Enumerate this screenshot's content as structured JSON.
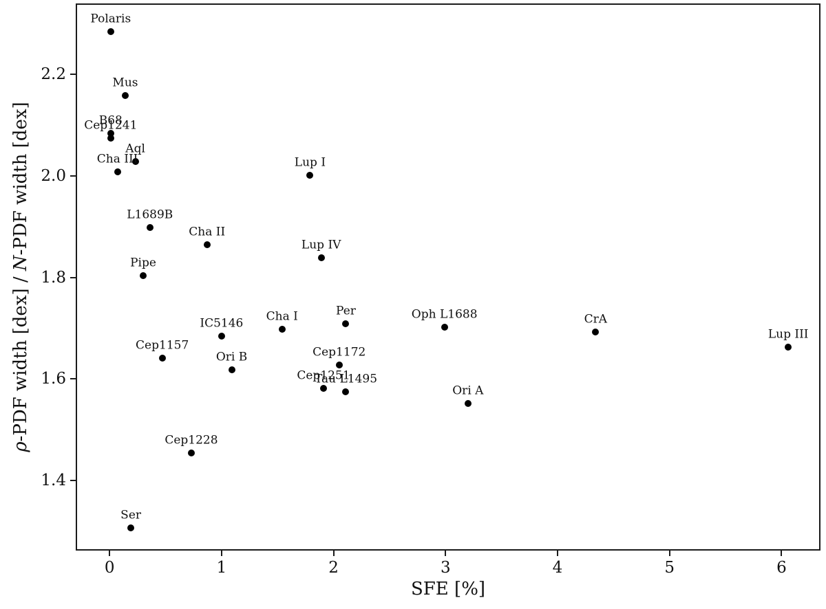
{
  "figure": {
    "background": "#ffffff",
    "marker_color": "#000000",
    "text_color": "#111111",
    "spine_color": "#1a1a1a"
  },
  "chart_data": {
    "type": "scatter",
    "title": "",
    "xlabel": "SFE [%]",
    "ylabel": "ρ-PDF width [dex] / N-PDF width [dex]",
    "ylabel_parts": [
      {
        "text": "ρ",
        "italic": true
      },
      {
        "text": "-PDF width [dex] / ",
        "italic": false
      },
      {
        "text": "N",
        "italic": true
      },
      {
        "text": "-PDF width [dex]",
        "italic": false
      }
    ],
    "xlim": [
      -0.29,
      6.36
    ],
    "ylim": [
      1.259,
      2.337
    ],
    "xticks": [
      {
        "value": 0,
        "label": "0"
      },
      {
        "value": 1,
        "label": "1"
      },
      {
        "value": 2,
        "label": "2"
      },
      {
        "value": 3,
        "label": "3"
      },
      {
        "value": 4,
        "label": "4"
      },
      {
        "value": 5,
        "label": "5"
      },
      {
        "value": 6,
        "label": "6"
      }
    ],
    "yticks": [
      {
        "value": 1.4,
        "label": "1.4"
      },
      {
        "value": 1.6,
        "label": "1.6"
      },
      {
        "value": 1.8,
        "label": "1.8"
      },
      {
        "value": 2.0,
        "label": "2.0"
      },
      {
        "value": 2.2,
        "label": "2.2"
      }
    ],
    "grid": false,
    "legend": null,
    "points": [
      {
        "label": "Polaris",
        "x": 0.01,
        "y": 2.284
      },
      {
        "label": "Mus",
        "x": 0.14,
        "y": 2.158
      },
      {
        "label": "B68",
        "x": 0.01,
        "y": 2.084
      },
      {
        "label": "Cep1241",
        "x": 0.01,
        "y": 2.074
      },
      {
        "label": "Aql",
        "x": 0.23,
        "y": 2.028
      },
      {
        "label": "Cha III",
        "x": 0.07,
        "y": 2.008
      },
      {
        "label": "Lup I",
        "x": 1.79,
        "y": 2.001
      },
      {
        "label": "L1689B",
        "x": 0.36,
        "y": 1.898
      },
      {
        "label": "Cha II",
        "x": 0.87,
        "y": 1.864
      },
      {
        "label": "Lup IV",
        "x": 1.89,
        "y": 1.838
      },
      {
        "label": "Pipe",
        "x": 0.3,
        "y": 1.803
      },
      {
        "label": "Per",
        "x": 2.11,
        "y": 1.708
      },
      {
        "label": "Oph L1688",
        "x": 2.99,
        "y": 1.702
      },
      {
        "label": "Cha I",
        "x": 1.54,
        "y": 1.698
      },
      {
        "label": "CrA",
        "x": 4.34,
        "y": 1.692
      },
      {
        "label": "IC5146",
        "x": 1.0,
        "y": 1.684
      },
      {
        "label": "Lup III",
        "x": 6.06,
        "y": 1.662
      },
      {
        "label": "Cep1157",
        "x": 0.47,
        "y": 1.641
      },
      {
        "label": "Cep1172",
        "x": 2.05,
        "y": 1.628
      },
      {
        "label": "Ori B",
        "x": 1.09,
        "y": 1.618
      },
      {
        "label": "Cep1251",
        "x": 1.91,
        "y": 1.581
      },
      {
        "label": "Tau L1495",
        "x": 2.11,
        "y": 1.574
      },
      {
        "label": "Ori A",
        "x": 3.2,
        "y": 1.551
      },
      {
        "label": "Cep1228",
        "x": 0.73,
        "y": 1.454
      },
      {
        "label": "Ser",
        "x": 0.19,
        "y": 1.307
      }
    ]
  }
}
